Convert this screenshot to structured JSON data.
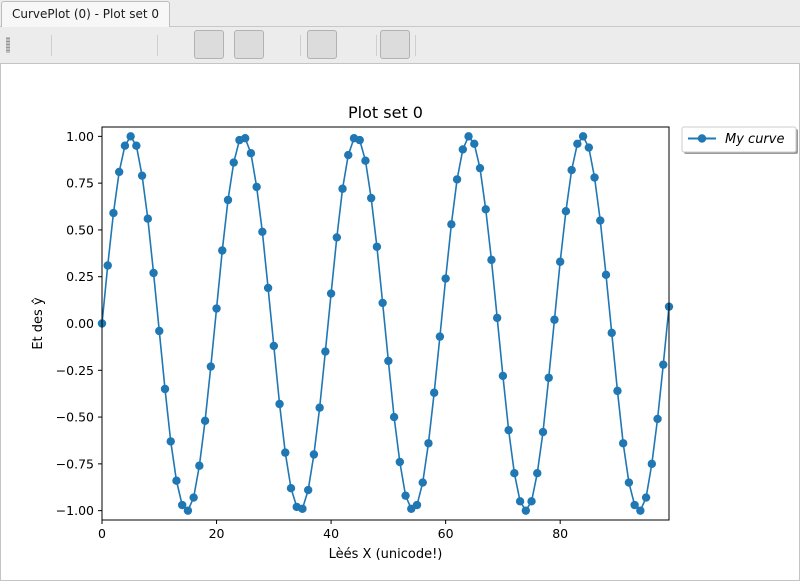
{
  "tab": {
    "label": "CurvePlot (0) - Plot set 0"
  },
  "chart_data": {
    "type": "line",
    "title": "Plot set 0",
    "xlabel": "Lèés X (unicode!)",
    "ylabel": "Et des ŷ",
    "xlim": [
      0,
      99
    ],
    "ylim": [
      -1.05,
      1.05
    ],
    "x_ticks": [
      0,
      20,
      40,
      60,
      80
    ],
    "x_tick_labels": [
      "0",
      "20",
      "40",
      "60",
      "80"
    ],
    "y_ticks": [
      -1.0,
      -0.75,
      -0.5,
      -0.25,
      0.0,
      0.25,
      0.5,
      0.75,
      1.0
    ],
    "y_tick_labels": [
      "−1.00",
      "−0.75",
      "−0.50",
      "−0.25",
      "0.00",
      "0.25",
      "0.50",
      "0.75",
      "1.00"
    ],
    "grid": false,
    "legend_position": "outside top-right",
    "series": [
      {
        "name": "My curve",
        "color": "#1f77b4",
        "marker": "circle",
        "x": [
          0,
          1,
          2,
          3,
          4,
          5,
          6,
          7,
          8,
          9,
          10,
          11,
          12,
          13,
          14,
          15,
          16,
          17,
          18,
          19,
          20,
          21,
          22,
          23,
          24,
          25,
          26,
          27,
          28,
          29,
          30,
          31,
          32,
          33,
          34,
          35,
          36,
          37,
          38,
          39,
          40,
          41,
          42,
          43,
          44,
          45,
          46,
          47,
          48,
          49,
          50,
          51,
          52,
          53,
          54,
          55,
          56,
          57,
          58,
          59,
          60,
          61,
          62,
          63,
          64,
          65,
          66,
          67,
          68,
          69,
          70,
          71,
          72,
          73,
          74,
          75,
          76,
          77,
          78,
          79,
          80,
          81,
          82,
          83,
          84,
          85,
          86,
          87,
          88,
          89,
          90,
          91,
          92,
          93,
          94,
          95,
          96,
          97,
          98,
          99
        ],
        "y": [
          0.0,
          0.31,
          0.59,
          0.81,
          0.95,
          1.0,
          0.95,
          0.79,
          0.56,
          0.27,
          -0.04,
          -0.35,
          -0.63,
          -0.84,
          -0.97,
          -1.0,
          -0.93,
          -0.76,
          -0.52,
          -0.23,
          0.08,
          0.39,
          0.66,
          0.86,
          0.98,
          0.99,
          0.91,
          0.73,
          0.49,
          0.19,
          -0.12,
          -0.43,
          -0.69,
          -0.88,
          -0.98,
          -0.99,
          -0.89,
          -0.7,
          -0.45,
          -0.15,
          0.16,
          0.46,
          0.72,
          0.9,
          0.99,
          0.98,
          0.87,
          0.67,
          0.41,
          0.11,
          -0.2,
          -0.5,
          -0.74,
          -0.92,
          -0.99,
          -0.97,
          -0.85,
          -0.64,
          -0.37,
          -0.07,
          0.24,
          0.53,
          0.77,
          0.93,
          1.0,
          0.96,
          0.83,
          0.61,
          0.34,
          0.03,
          -0.28,
          -0.57,
          -0.8,
          -0.95,
          -1.0,
          -0.95,
          -0.8,
          -0.58,
          -0.29,
          0.02,
          0.33,
          0.6,
          0.82,
          0.96,
          1.0,
          0.94,
          0.78,
          0.55,
          0.26,
          -0.05,
          -0.36,
          -0.64,
          -0.85,
          -0.97,
          -1.0,
          -0.93,
          -0.75,
          -0.51,
          -0.22,
          0.09
        ]
      }
    ]
  }
}
